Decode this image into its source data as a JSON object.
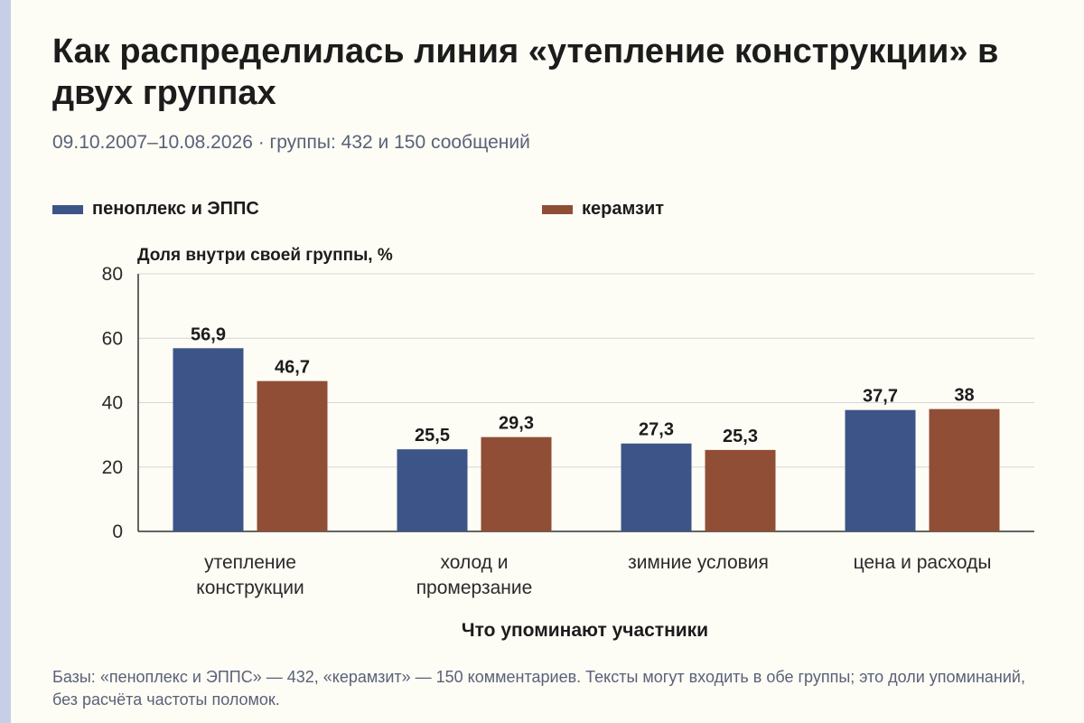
{
  "chart_data": {
    "type": "bar",
    "title": "Как распределилась линия «утепление конструкции» в двух группах",
    "subtitle": "09.10.2007–10.08.2026 · группы: 432 и 150 сообщений",
    "ylabel": "Доля внутри своей группы, %",
    "xlabel": "Что упоминают участники",
    "ylim": [
      0,
      80
    ],
    "yticks": [
      0,
      20,
      40,
      60,
      80
    ],
    "grid": true,
    "legend_position": "top",
    "categories": [
      [
        "утепление",
        "конструкции"
      ],
      [
        "холод и",
        "промерзание"
      ],
      [
        "зимние условия"
      ],
      [
        "цена и расходы"
      ]
    ],
    "series": [
      {
        "name": "пеноплекс и ЭППС",
        "color": "#3d5488",
        "values": [
          56.9,
          25.5,
          27.3,
          37.7
        ],
        "labels": [
          "56,9",
          "25,5",
          "27,3",
          "37,7"
        ]
      },
      {
        "name": "керамзит",
        "color": "#8f4e35",
        "values": [
          46.7,
          29.3,
          25.3,
          38.0
        ],
        "labels": [
          "46,7",
          "29,3",
          "25,3",
          "38"
        ]
      }
    ],
    "footnote": "Базы: «пеноплекс и ЭППС» — 432, «керамзит» — 150 комментариев. Тексты могут входить в обе группы; это доли упоминаний, без расчёта частоты поломок."
  }
}
